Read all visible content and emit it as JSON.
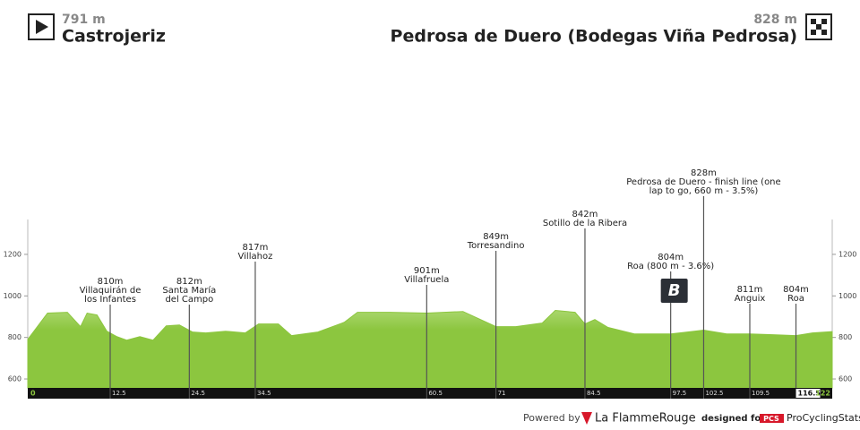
{
  "header": {
    "start": {
      "elevation": "791 m",
      "name": "Castrojeriz"
    },
    "finish": {
      "elevation": "828 m",
      "name": "Pedrosa de Duero (Bodegas Viña Pedrosa)"
    }
  },
  "chart_data": {
    "type": "area",
    "color": "#8cc63f",
    "x": [
      0,
      3,
      6,
      8,
      9,
      10.5,
      12,
      13.5,
      15,
      17,
      19,
      21,
      23,
      25,
      27,
      30,
      33,
      35,
      38,
      40,
      44,
      48,
      50,
      55,
      60.5,
      66,
      71,
      74,
      78,
      80,
      83,
      84.5,
      86,
      88,
      92,
      97.5,
      102.5,
      106,
      109.5,
      113,
      116.5,
      119,
      122
    ],
    "values": [
      791,
      917,
      921,
      852,
      917,
      908,
      830,
      804,
      787,
      804,
      787,
      856,
      860,
      826,
      822,
      830,
      822,
      865,
      865,
      809,
      826,
      873,
      921,
      921,
      917,
      925,
      852,
      852,
      869,
      930,
      921,
      865,
      886,
      848,
      817,
      817,
      835,
      817,
      817,
      813,
      809,
      822,
      828
    ],
    "xlim": [
      0,
      122
    ],
    "ylim": [
      557,
      1368
    ],
    "yticks": [
      600,
      800,
      1000,
      1200
    ],
    "xticks": [
      0,
      12.5,
      24.5,
      34.5,
      60.5,
      71,
      84.5,
      97.5,
      102.5,
      109.5,
      116.5,
      122
    ],
    "markers": [
      {
        "km": 12.5,
        "elevation": "810m",
        "name_lines": [
          "Villaquirán de",
          "los Infantes"
        ]
      },
      {
        "km": 24.5,
        "elevation": "812m",
        "name_lines": [
          "Santa María",
          "del Campo"
        ]
      },
      {
        "km": 34.5,
        "elevation": "817m",
        "name_lines": [
          "Villahoz"
        ]
      },
      {
        "km": 60.5,
        "elevation": "901m",
        "name_lines": [
          "Villafruela"
        ]
      },
      {
        "km": 71,
        "elevation": "849m",
        "name_lines": [
          "Torresandino"
        ]
      },
      {
        "km": 84.5,
        "elevation": "842m",
        "name_lines": [
          "Sotillo de la Ribera"
        ]
      },
      {
        "km": 97.5,
        "elevation": "804m",
        "name_lines": [
          "Roa (800 m - 3.6%)"
        ],
        "icon": "B"
      },
      {
        "km": 102.5,
        "elevation": "828m",
        "name_lines": [
          "Pedrosa de Duero - finish line (one",
          "lap to go, 660 m - 3.5%)"
        ]
      },
      {
        "km": 109.5,
        "elevation": "811m",
        "name_lines": [
          "Anguix"
        ]
      },
      {
        "km": 116.5,
        "elevation": "804m",
        "name_lines": [
          "Roa"
        ]
      }
    ]
  },
  "footer": {
    "powered": "Powered by",
    "brand": "La FlammeRouge",
    "designed": "designed for",
    "pcs_logo": "PCS",
    "pcs": "ProCyclingStats"
  }
}
